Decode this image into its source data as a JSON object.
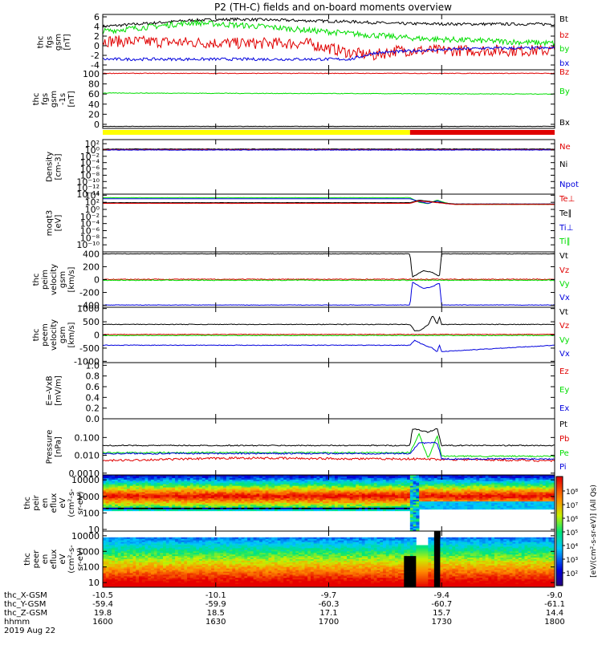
{
  "title": "P2 (TH-C) fields and on-board moments overview",
  "colors": {
    "black": "#000000",
    "red": "#e00000",
    "green": "#00dd00",
    "blue": "#0000dd",
    "yellow": "#ffff00"
  },
  "chart_data": [
    {
      "type": "line",
      "id": "p1",
      "ylabel_lines": [
        "thc",
        "fgs",
        "gsm",
        "[nT]"
      ],
      "ylim": [
        -5,
        6.5
      ],
      "yticks": [
        {
          "v": 6,
          "t": "6"
        },
        {
          "v": 4,
          "t": "4"
        },
        {
          "v": 2,
          "t": "2"
        },
        {
          "v": 0,
          "t": "0"
        },
        {
          "v": -2,
          "t": "-2"
        },
        {
          "v": -4,
          "t": "-4"
        }
      ],
      "series": [
        {
          "name": "Bt",
          "color": "black",
          "noise": 0.3,
          "x": [
            0,
            0.2,
            0.3,
            0.45,
            0.55,
            0.65,
            0.8,
            1.0
          ],
          "y": [
            4.0,
            5.3,
            5.5,
            5.2,
            5.0,
            4.6,
            4.5,
            4.5
          ]
        },
        {
          "name": "bz",
          "color": "red",
          "noise": 1.2,
          "x": [
            0,
            0.3,
            0.45,
            0.55,
            0.6,
            0.65,
            1.0
          ],
          "y": [
            1.0,
            0.5,
            0.5,
            -1.5,
            -2.0,
            -1.0,
            -1.0
          ]
        },
        {
          "name": "by",
          "color": "green",
          "noise": 0.6,
          "x": [
            0,
            0.2,
            0.35,
            0.55,
            0.7,
            0.85,
            1.0
          ],
          "y": [
            3.0,
            4.8,
            4.0,
            2.5,
            1.5,
            1.0,
            0.5
          ]
        },
        {
          "name": "bx",
          "color": "blue",
          "noise": 0.3,
          "x": [
            0,
            0.55,
            0.6,
            0.7,
            0.85,
            1.0
          ],
          "y": [
            -2.8,
            -2.8,
            -1.5,
            -1.0,
            -0.5,
            -0.5
          ]
        }
      ],
      "legend": [
        {
          "t": "Bt",
          "c": "black",
          "y": 23
        },
        {
          "t": "bz",
          "c": "red",
          "y": 43
        },
        {
          "t": "by",
          "c": "green",
          "y": 60
        },
        {
          "t": "bx",
          "c": "blue",
          "y": 78
        }
      ]
    },
    {
      "type": "line",
      "id": "p2",
      "ylabel_lines": [
        "thc",
        "fgs",
        "gsm",
        "-1s",
        "[nT]"
      ],
      "ylim": [
        -8,
        108
      ],
      "yticks": [
        {
          "v": 100,
          "t": "100"
        },
        {
          "v": 80,
          "t": "80"
        },
        {
          "v": 60,
          "t": "60"
        },
        {
          "v": 40,
          "t": "40"
        },
        {
          "v": 20,
          "t": "20"
        },
        {
          "v": 0,
          "t": "0"
        }
      ],
      "series": [
        {
          "name": "Bz",
          "color": "red",
          "noise": 0.6,
          "x": [
            0,
            1.0
          ],
          "y": [
            101,
            101
          ]
        },
        {
          "name": "By",
          "color": "green",
          "noise": 0.6,
          "x": [
            0,
            1.0
          ],
          "y": [
            62,
            60
          ]
        },
        {
          "name": "Bx",
          "color": "black",
          "noise": 0.3,
          "x": [
            0,
            1.0
          ],
          "y": [
            -4,
            -4
          ]
        }
      ],
      "legend": [
        {
          "t": "Bz",
          "c": "red",
          "y": 89
        },
        {
          "t": "By",
          "c": "green",
          "y": 113
        },
        {
          "t": "Bx",
          "c": "black",
          "y": 152
        }
      ]
    },
    {
      "type": "line",
      "id": "p3",
      "ylabel_lines": [
        "Density",
        "[cm-3]"
      ],
      "ylog": true,
      "ylim": [
        -14,
        3.3
      ],
      "yticks": [
        {
          "v": 2,
          "t": "10²"
        },
        {
          "v": 0,
          "t": "10⁰"
        },
        {
          "v": -2,
          "t": "10⁻²"
        },
        {
          "v": -4,
          "t": "10⁻⁴"
        },
        {
          "v": -6,
          "t": "10⁻⁶"
        },
        {
          "v": -8,
          "t": "10⁻⁸"
        },
        {
          "v": -10,
          "t": "10⁻¹⁰"
        },
        {
          "v": -12,
          "t": "10⁻¹²"
        },
        {
          "v": -14,
          "t": "10⁻¹⁴"
        }
      ],
      "series": [
        {
          "name": "Ni",
          "color": "black",
          "noise": 0.08,
          "x": [
            0,
            1.0
          ],
          "y": [
            0.3,
            0.3
          ]
        },
        {
          "name": "Ne",
          "color": "red",
          "noise": 0.08,
          "x": [
            0,
            1.0
          ],
          "y": [
            0.1,
            0.1
          ]
        },
        {
          "name": "Npot",
          "color": "blue",
          "noise": 0.08,
          "x": [
            0,
            1.0
          ],
          "y": [
            0.0,
            0.0
          ]
        }
      ],
      "legend": [
        {
          "t": "Ne",
          "c": "red",
          "y": 182
        },
        {
          "t": "Ni",
          "c": "black",
          "y": 204
        },
        {
          "t": "Npot",
          "c": "blue",
          "y": 229
        }
      ]
    },
    {
      "type": "line",
      "id": "p4",
      "ylabel_lines": [
        "moqt3",
        "[eV]"
      ],
      "ylog": true,
      "ylim": [
        -12,
        4.3
      ],
      "yticks": [
        {
          "v": 4,
          "t": "10⁴"
        },
        {
          "v": 2,
          "t": "10²"
        },
        {
          "v": 0,
          "t": "10⁰"
        },
        {
          "v": -2,
          "t": "10⁻²"
        },
        {
          "v": -4,
          "t": "10⁻⁴"
        },
        {
          "v": -6,
          "t": "10⁻⁶"
        },
        {
          "v": -8,
          "t": "10⁻⁸"
        },
        {
          "v": -10,
          "t": "10⁻¹⁰"
        }
      ],
      "series": [
        {
          "name": "Ti∥",
          "color": "green",
          "noise": 0.02,
          "x": [
            0,
            0.68,
            0.7,
            0.72,
            0.74,
            0.76,
            0.78,
            1.0
          ],
          "y": [
            3.3,
            3.3,
            2.0,
            1.6,
            2.6,
            1.8,
            1.4,
            1.4
          ]
        },
        {
          "name": "Ti⊥",
          "color": "blue",
          "noise": 0.02,
          "x": [
            0,
            0.68,
            0.7,
            0.72,
            0.74,
            0.76,
            0.78,
            1.0
          ],
          "y": [
            3.0,
            3.0,
            2.2,
            1.7,
            2.4,
            1.6,
            1.5,
            1.5
          ]
        },
        {
          "name": "Te∥",
          "color": "black",
          "noise": 0.02,
          "x": [
            0,
            0.68,
            0.7,
            0.74,
            0.78,
            1.0
          ],
          "y": [
            1.9,
            1.9,
            2.6,
            2.0,
            1.5,
            1.5
          ]
        },
        {
          "name": "Te⊥",
          "color": "red",
          "noise": 0.02,
          "x": [
            0,
            0.68,
            0.7,
            0.74,
            0.78,
            1.0
          ],
          "y": [
            1.7,
            1.7,
            2.4,
            1.9,
            1.4,
            1.4
          ]
        }
      ],
      "legend": [
        {
          "t": "Te⊥",
          "c": "red",
          "y": 247
        },
        {
          "t": "Te∥",
          "c": "black",
          "y": 265
        },
        {
          "t": "Ti⊥",
          "c": "blue",
          "y": 283
        },
        {
          "t": "Ti∥",
          "c": "green",
          "y": 300
        }
      ]
    },
    {
      "type": "line",
      "id": "p5",
      "ylabel_lines": [
        "thc",
        "peim",
        "velocity",
        "gsm",
        "[km/s]"
      ],
      "ylim": [
        -430,
        430
      ],
      "yticks": [
        {
          "v": 400,
          "t": "400"
        },
        {
          "v": 200,
          "t": "200"
        },
        {
          "v": 0,
          "t": "0"
        },
        {
          "v": -200,
          "t": "-200"
        },
        {
          "v": -400,
          "t": "-400"
        }
      ],
      "series": [
        {
          "name": "Vt",
          "color": "black",
          "noise": 4,
          "x": [
            0,
            0.68,
            0.685,
            0.71,
            0.73,
            0.745,
            0.75,
            1.0
          ],
          "y": [
            400,
            400,
            40,
            140,
            110,
            50,
            400,
            400
          ]
        },
        {
          "name": "Vz",
          "color": "red",
          "noise": 6,
          "x": [
            0,
            1.0
          ],
          "y": [
            5,
            5
          ]
        },
        {
          "name": "Vy",
          "color": "green",
          "noise": 6,
          "x": [
            0,
            1.0
          ],
          "y": [
            -10,
            -10
          ]
        },
        {
          "name": "Vx",
          "color": "blue",
          "noise": 4,
          "x": [
            0,
            0.68,
            0.685,
            0.71,
            0.73,
            0.745,
            0.75,
            1.0
          ],
          "y": [
            -395,
            -395,
            -40,
            -140,
            -110,
            -50,
            -395,
            -395
          ]
        }
      ],
      "legend": [
        {
          "t": "Vt",
          "c": "black",
          "y": 318
        },
        {
          "t": "Vz",
          "c": "red",
          "y": 336
        },
        {
          "t": "Vy",
          "c": "green",
          "y": 353
        },
        {
          "t": "Vx",
          "c": "blue",
          "y": 370
        }
      ]
    },
    {
      "type": "line",
      "id": "p6",
      "ylabel_lines": [
        "thc",
        "peem",
        "velocity",
        "gsm",
        "[km/s]"
      ],
      "ylim": [
        -1050,
        1050
      ],
      "yticks": [
        {
          "v": 1000,
          "t": "1000"
        },
        {
          "v": 500,
          "t": "500"
        },
        {
          "v": 0,
          "t": "0"
        },
        {
          "v": -500,
          "t": "-500"
        },
        {
          "v": -1000,
          "t": "-1000"
        }
      ],
      "series": [
        {
          "name": "Vt",
          "color": "black",
          "noise": 12,
          "x": [
            0,
            0.68,
            0.69,
            0.7,
            0.72,
            0.73,
            0.74,
            0.745,
            0.75,
            1.0
          ],
          "y": [
            400,
            400,
            160,
            150,
            380,
            750,
            400,
            700,
            400,
            400
          ]
        },
        {
          "name": "Vz",
          "color": "red",
          "noise": 12,
          "x": [
            0,
            1.0
          ],
          "y": [
            20,
            20
          ]
        },
        {
          "name": "Vy",
          "color": "green",
          "noise": 12,
          "x": [
            0,
            1.0
          ],
          "y": [
            -20,
            -20
          ]
        },
        {
          "name": "Vx",
          "color": "blue",
          "noise": 12,
          "x": [
            0,
            0.68,
            0.69,
            0.71,
            0.73,
            0.74,
            0.745,
            0.75,
            1.0
          ],
          "y": [
            -390,
            -390,
            -200,
            -380,
            -500,
            -650,
            -380,
            -630,
            -390
          ]
        }
      ],
      "legend": [
        {
          "t": "Vt",
          "c": "black",
          "y": 388
        },
        {
          "t": "Vz",
          "c": "red",
          "y": 405
        },
        {
          "t": "Vy",
          "c": "green",
          "y": 423
        },
        {
          "t": "Vx",
          "c": "blue",
          "y": 440
        }
      ]
    },
    {
      "type": "line",
      "id": "p7",
      "ylabel_lines": [
        "E=-VxB",
        "[mV/m]"
      ],
      "ylim": [
        0,
        1.05
      ],
      "yticks": [
        {
          "v": 1.0,
          "t": "1.0"
        },
        {
          "v": 0.8,
          "t": "0.8"
        },
        {
          "v": 0.6,
          "t": "0.6"
        },
        {
          "v": 0.4,
          "t": "0.4"
        },
        {
          "v": 0.2,
          "t": "0.2"
        },
        {
          "v": 0.0,
          "t": "0.0"
        }
      ],
      "series": [],
      "legend": [
        {
          "t": "Ez",
          "c": "red",
          "y": 462
        },
        {
          "t": "Ey",
          "c": "green",
          "y": 485
        },
        {
          "t": "Ex",
          "c": "blue",
          "y": 508
        }
      ]
    },
    {
      "type": "line",
      "id": "p8",
      "ylabel_lines": [
        "Pressure",
        "[nPa]"
      ],
      "ylog": true,
      "ylim": [
        -3.1,
        0.05
      ],
      "yticks": [
        {
          "v": -1,
          "t": "0.100"
        },
        {
          "v": -2,
          "t": "0.010"
        },
        {
          "v": -3,
          "t": "0.0010"
        }
      ],
      "series": [
        {
          "name": "Pt",
          "color": "black",
          "noise": 0.03,
          "x": [
            0,
            0.68,
            0.685,
            0.72,
            0.74,
            0.75,
            1.0
          ],
          "y": [
            -1.45,
            -1.45,
            -0.5,
            -0.7,
            -0.5,
            -1.45,
            -1.45
          ]
        },
        {
          "name": "Pb",
          "color": "red",
          "noise": 0.06,
          "x": [
            0,
            0.3,
            0.6,
            0.68,
            1.0
          ],
          "y": [
            -2.3,
            -2.15,
            -2.2,
            -2.2,
            -2.3
          ]
        },
        {
          "name": "Pe",
          "color": "green",
          "noise": 0.04,
          "x": [
            0,
            0.68,
            0.7,
            0.72,
            0.74,
            0.75,
            1.0
          ],
          "y": [
            -1.85,
            -1.85,
            -0.8,
            -2.2,
            -0.9,
            -2.05,
            -2.05
          ]
        },
        {
          "name": "Pi",
          "color": "blue",
          "noise": 0.04,
          "x": [
            0,
            0.68,
            0.7,
            0.74,
            0.75,
            1.0
          ],
          "y": [
            -1.9,
            -1.9,
            -1.3,
            -1.3,
            -2.2,
            -2.2
          ]
        }
      ],
      "legend": [
        {
          "t": "Pt",
          "c": "black",
          "y": 528
        },
        {
          "t": "Pb",
          "c": "red",
          "y": 546
        },
        {
          "t": "Pe",
          "c": "green",
          "y": 564
        },
        {
          "t": "Pi",
          "c": "blue",
          "y": 581
        }
      ]
    },
    {
      "type": "heatmap",
      "id": "p9",
      "ylabel_lines": [
        "thc",
        "peir",
        "en",
        "eflux",
        "eV",
        "(cm²-s-",
        "sr-eV)"
      ],
      "ylog": true,
      "ylim": [
        0.9,
        4.3
      ],
      "yticks": [
        {
          "v": 4,
          "t": "10000"
        },
        {
          "v": 3,
          "t": "1000"
        },
        {
          "v": 2,
          "t": "100"
        },
        {
          "v": 1,
          "t": "10"
        }
      ]
    },
    {
      "type": "heatmap",
      "id": "p10",
      "ylabel_lines": [
        "thc",
        "peer",
        "en",
        "eflux",
        "eV",
        "(cm²-s-",
        "sr-eV)"
      ],
      "ylog": true,
      "ylim": [
        0.7,
        4.3
      ],
      "yticks": [
        {
          "v": 4,
          "t": "10000"
        },
        {
          "v": 3,
          "t": "1000"
        },
        {
          "v": 2,
          "t": "100"
        },
        {
          "v": 1,
          "t": "10"
        }
      ]
    }
  ],
  "colorbar": {
    "label": "[eV/(cm²-s-sr-eV)] (All Qs)",
    "ticks": [
      {
        "t": "10⁸",
        "y": 612
      },
      {
        "t": "10⁷",
        "y": 629
      },
      {
        "t": "10⁶",
        "y": 646
      },
      {
        "t": "10⁵",
        "y": 663
      },
      {
        "t": "10⁴",
        "y": 680
      },
      {
        "t": "10³",
        "y": 697
      },
      {
        "t": "10²",
        "y": 714
      }
    ]
  },
  "mode_bar": {
    "segments": [
      {
        "from": 0,
        "to": 0.68,
        "color": "yellow"
      },
      {
        "from": 0.68,
        "to": 1.0,
        "color": "red"
      }
    ]
  },
  "xaxis": {
    "rows": [
      {
        "label": "thc_X-GSM",
        "values": [
          "-10.5",
          "-10.1",
          "-9.7",
          "-9.4",
          "-9.0"
        ]
      },
      {
        "label": "thc_Y-GSM",
        "values": [
          "-59.4",
          "-59.9",
          "-60.3",
          "-60.7",
          "-61.1"
        ]
      },
      {
        "label": "thc_Z-GSM",
        "values": [
          "19.8",
          "18.5",
          "17.1",
          "15.7",
          "14.4"
        ]
      },
      {
        "label": "hhmm",
        "values": [
          "1600",
          "1630",
          "1700",
          "1730",
          "1800"
        ]
      }
    ],
    "date": "2019 Aug 22"
  }
}
